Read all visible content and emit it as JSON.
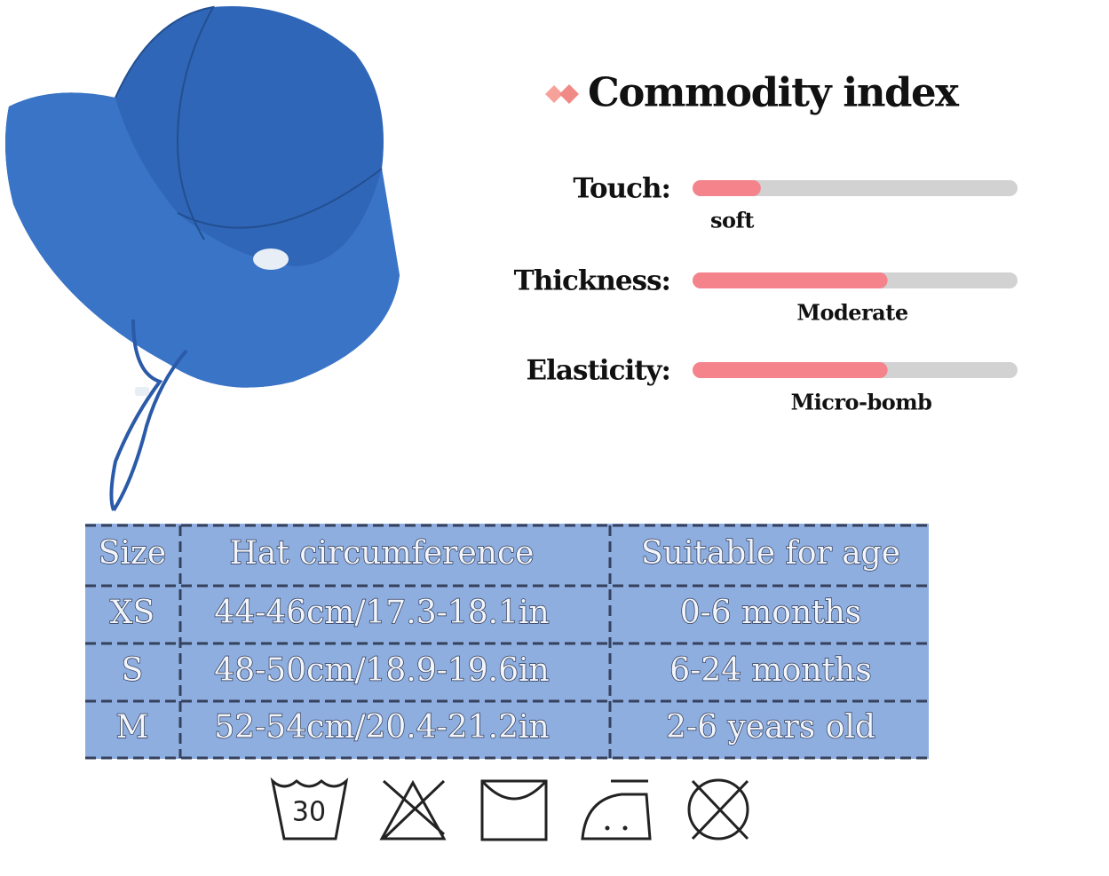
{
  "header": {
    "title": "Commodity index"
  },
  "indices": [
    {
      "label": "Touch:",
      "value_label": "soft",
      "level": 0.21
    },
    {
      "label": "Thickness:",
      "value_label": "Moderate",
      "level": 0.6
    },
    {
      "label": "Elasticity:",
      "value_label": "Micro-bomb",
      "level": 0.6
    }
  ],
  "table": {
    "header": [
      "Size",
      "Hat circumference",
      "Suitable for age"
    ],
    "rows": [
      [
        "XS",
        "44-46cm/17.3-18.1in",
        "0-6 months"
      ],
      [
        "S",
        "48-50cm/18.9-19.6in",
        "6-24 months"
      ],
      [
        "M",
        "52-54cm/20.4-21.2in",
        "2-6 years old"
      ]
    ]
  },
  "care_icons": {
    "wash_temperature": "30"
  }
}
